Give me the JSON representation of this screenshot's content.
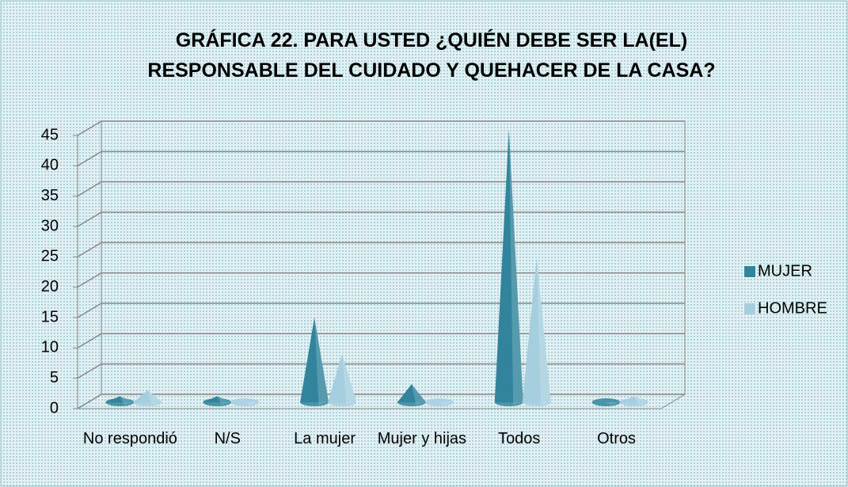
{
  "chart_data": {
    "type": "cone",
    "title": "GRÁFICA 22. PARA USTED ¿QUIÉN DEBE SER LA(EL) RESPONSABLE DEL CUIDADO Y QUEHACER DE LA CASA?",
    "categories": [
      "No respondió",
      "N/S",
      "La mujer",
      "Mujer y hijas",
      "Todos",
      "Otros"
    ],
    "series": [
      {
        "name": "MUJER",
        "color": "#31849b",
        "values": [
          1,
          1,
          14,
          3,
          45,
          0
        ]
      },
      {
        "name": "HOMBRE",
        "color": "#a5cfdf",
        "values": [
          2,
          0,
          8,
          0,
          24,
          1
        ]
      }
    ],
    "ylim": [
      0,
      45
    ],
    "yticks": [
      0,
      5,
      10,
      15,
      20,
      25,
      30,
      35,
      40,
      45
    ],
    "grid": true,
    "legend": "right"
  }
}
